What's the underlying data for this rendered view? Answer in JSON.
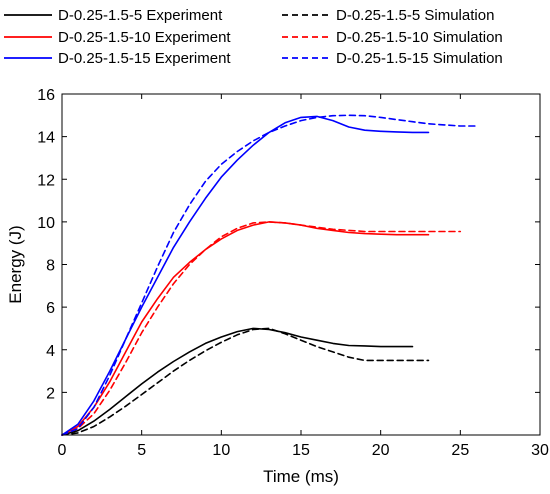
{
  "chart_data": {
    "type": "line",
    "xlabel": "Time (ms)",
    "ylabel": "Energy (J)",
    "xlim": [
      0,
      30
    ],
    "ylim": [
      0,
      16
    ],
    "xticks": [
      0,
      5,
      10,
      15,
      20,
      25,
      30
    ],
    "yticks": [
      2,
      4,
      6,
      8,
      10,
      12,
      14,
      16
    ],
    "grid": false,
    "legend_position": "top, two columns above plot",
    "series": [
      {
        "name": "D-0.25-1.5-5 Experiment",
        "color": "#000000",
        "dash": "solid",
        "x": [
          0,
          1,
          2,
          3,
          4,
          5,
          6,
          7,
          8,
          9,
          10,
          11,
          12,
          13,
          14,
          15,
          16,
          17,
          18,
          19,
          20,
          21,
          22
        ],
        "y": [
          0,
          0.2,
          0.65,
          1.2,
          1.8,
          2.4,
          2.95,
          3.45,
          3.9,
          4.3,
          4.6,
          4.85,
          5.0,
          4.95,
          4.8,
          4.6,
          4.45,
          4.3,
          4.2,
          4.18,
          4.15,
          4.15,
          4.15
        ]
      },
      {
        "name": "D-0.25-1.5-5 Simulation",
        "color": "#000000",
        "dash": "dashed",
        "x": [
          0,
          1,
          2,
          3,
          4,
          5,
          6,
          7,
          8,
          9,
          10,
          11,
          12,
          13,
          14,
          15,
          16,
          17,
          18,
          19,
          20,
          21,
          22,
          23
        ],
        "y": [
          0,
          0.1,
          0.4,
          0.85,
          1.35,
          1.9,
          2.45,
          3.0,
          3.5,
          3.95,
          4.35,
          4.7,
          4.95,
          5.0,
          4.75,
          4.45,
          4.15,
          3.9,
          3.65,
          3.5,
          3.5,
          3.5,
          3.5,
          3.5
        ]
      },
      {
        "name": "D-0.25-1.5-10 Experiment",
        "color": "#ff0000",
        "dash": "solid",
        "x": [
          0,
          1,
          2,
          3,
          4,
          5,
          6,
          7,
          8,
          9,
          10,
          11,
          12,
          13,
          14,
          15,
          16,
          17,
          18,
          19,
          20,
          21,
          22,
          23
        ],
        "y": [
          0,
          0.4,
          1.3,
          2.5,
          3.9,
          5.3,
          6.4,
          7.4,
          8.1,
          8.7,
          9.2,
          9.6,
          9.85,
          10.0,
          9.95,
          9.85,
          9.7,
          9.6,
          9.5,
          9.45,
          9.42,
          9.4,
          9.4,
          9.4
        ]
      },
      {
        "name": "D-0.25-1.5-10 Simulation",
        "color": "#ff0000",
        "dash": "dashed",
        "x": [
          0,
          1,
          2,
          3,
          4,
          5,
          6,
          7,
          8,
          9,
          10,
          11,
          12,
          13,
          14,
          15,
          16,
          17,
          18,
          19,
          20,
          21,
          22,
          23,
          24,
          25
        ],
        "y": [
          0,
          0.3,
          1.0,
          2.1,
          3.4,
          4.8,
          6.0,
          7.1,
          8.0,
          8.7,
          9.3,
          9.7,
          9.95,
          10.0,
          9.95,
          9.85,
          9.75,
          9.65,
          9.6,
          9.55,
          9.55,
          9.55,
          9.55,
          9.55,
          9.55,
          9.55
        ]
      },
      {
        "name": "D-0.25-1.5-15 Experiment",
        "color": "#0000ff",
        "dash": "solid",
        "x": [
          0,
          1,
          2,
          3,
          4,
          5,
          6,
          7,
          8,
          9,
          10,
          11,
          12,
          13,
          14,
          15,
          16,
          17,
          18,
          19,
          20,
          21,
          22,
          23
        ],
        "y": [
          0,
          0.5,
          1.6,
          3.0,
          4.5,
          6.0,
          7.4,
          8.8,
          10.0,
          11.1,
          12.1,
          12.9,
          13.6,
          14.2,
          14.65,
          14.9,
          14.95,
          14.75,
          14.45,
          14.3,
          14.25,
          14.22,
          14.2,
          14.2
        ]
      },
      {
        "name": "D-0.25-1.5-15 Simulation",
        "color": "#0000ff",
        "dash": "dashed",
        "x": [
          0,
          1,
          2,
          3,
          4,
          5,
          6,
          7,
          8,
          9,
          10,
          11,
          12,
          13,
          14,
          15,
          16,
          17,
          18,
          19,
          20,
          21,
          22,
          23,
          24,
          25,
          26
        ],
        "y": [
          0,
          0.3,
          1.3,
          2.8,
          4.5,
          6.2,
          7.9,
          9.5,
          10.8,
          11.9,
          12.7,
          13.3,
          13.8,
          14.2,
          14.5,
          14.75,
          14.9,
          14.98,
          15.0,
          14.98,
          14.9,
          14.8,
          14.7,
          14.6,
          14.55,
          14.5,
          14.5
        ]
      }
    ]
  }
}
